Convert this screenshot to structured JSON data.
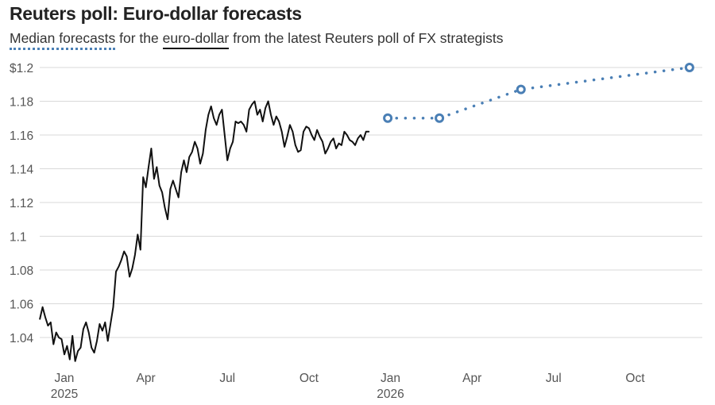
{
  "title": "Reuters poll: Euro-dollar forecasts",
  "subtitle": {
    "part1": "Median forecasts",
    "part2": " for the ",
    "part3": "euro-dollar",
    "part4": " from the latest Reuters poll of FX strategists"
  },
  "colors": {
    "actual": "#111111",
    "forecast": "#4a7fb5",
    "grid": "#d9d9d9",
    "text": "#555555"
  },
  "chart_data": {
    "type": "line",
    "title": "Reuters poll: Euro-dollar forecasts",
    "xlabel": "",
    "ylabel": "",
    "ylim": [
      1.02,
      1.2
    ],
    "yticks": [
      {
        "value": 1.2,
        "label": "$1.2"
      },
      {
        "value": 1.18,
        "label": "1.18"
      },
      {
        "value": 1.16,
        "label": "1.16"
      },
      {
        "value": 1.14,
        "label": "1.14"
      },
      {
        "value": 1.12,
        "label": "1.12"
      },
      {
        "value": 1.1,
        "label": "1.1"
      },
      {
        "value": 1.08,
        "label": "1.08"
      },
      {
        "value": 1.06,
        "label": "1.06"
      },
      {
        "value": 1.04,
        "label": "1.04"
      }
    ],
    "xrange_months": [
      -0.7,
      23.5
    ],
    "xticks": [
      {
        "month": 0,
        "label": "Jan",
        "year": "2025"
      },
      {
        "month": 3,
        "label": "Apr"
      },
      {
        "month": 6,
        "label": "Jul"
      },
      {
        "month": 9,
        "label": "Oct"
      },
      {
        "month": 12,
        "label": "Jan",
        "year": "2026"
      },
      {
        "month": 15,
        "label": "Apr"
      },
      {
        "month": 18,
        "label": "Jul"
      },
      {
        "month": 21,
        "label": "Oct"
      }
    ],
    "series": [
      {
        "name": "euro-dollar",
        "style": "solid",
        "x_month": [
          -0.9,
          -0.8,
          -0.7,
          -0.6,
          -0.5,
          -0.4,
          -0.3,
          -0.2,
          -0.1,
          0.0,
          0.1,
          0.2,
          0.3,
          0.4,
          0.5,
          0.6,
          0.7,
          0.8,
          0.9,
          1.0,
          1.1,
          1.2,
          1.3,
          1.4,
          1.5,
          1.6,
          1.7,
          1.8,
          1.9,
          2.0,
          2.1,
          2.2,
          2.3,
          2.4,
          2.5,
          2.6,
          2.7,
          2.8,
          2.9,
          3.0,
          3.1,
          3.2,
          3.3,
          3.4,
          3.5,
          3.6,
          3.7,
          3.8,
          3.9,
          4.0,
          4.1,
          4.2,
          4.3,
          4.4,
          4.5,
          4.6,
          4.7,
          4.8,
          4.9,
          5.0,
          5.1,
          5.2,
          5.3,
          5.4,
          5.5,
          5.6,
          5.7,
          5.8,
          5.9,
          6.0,
          6.1,
          6.2,
          6.3,
          6.4,
          6.5,
          6.6,
          6.7,
          6.8,
          6.9,
          7.0,
          7.1,
          7.2,
          7.3,
          7.4,
          7.5,
          7.6,
          7.7,
          7.8,
          7.9,
          8.0,
          8.1,
          8.2,
          8.3,
          8.4,
          8.5,
          8.6,
          8.7,
          8.8,
          8.9,
          9.0,
          9.1,
          9.2,
          9.3,
          9.4,
          9.5,
          9.6,
          9.7,
          9.8,
          9.9,
          10.0,
          10.1,
          10.2,
          10.3,
          10.4,
          10.5,
          10.6,
          10.7,
          10.8,
          10.9,
          11.0,
          11.1,
          11.2
        ],
        "values": [
          1.051,
          1.058,
          1.052,
          1.047,
          1.049,
          1.036,
          1.043,
          1.04,
          1.039,
          1.03,
          1.035,
          1.027,
          1.041,
          1.026,
          1.032,
          1.034,
          1.045,
          1.049,
          1.043,
          1.034,
          1.031,
          1.038,
          1.048,
          1.044,
          1.049,
          1.038,
          1.048,
          1.058,
          1.079,
          1.082,
          1.086,
          1.091,
          1.088,
          1.076,
          1.081,
          1.089,
          1.101,
          1.092,
          1.135,
          1.129,
          1.141,
          1.152,
          1.134,
          1.141,
          1.13,
          1.126,
          1.117,
          1.11,
          1.128,
          1.133,
          1.128,
          1.123,
          1.138,
          1.145,
          1.138,
          1.147,
          1.15,
          1.156,
          1.152,
          1.143,
          1.149,
          1.163,
          1.172,
          1.177,
          1.17,
          1.166,
          1.172,
          1.175,
          1.16,
          1.145,
          1.152,
          1.156,
          1.168,
          1.167,
          1.168,
          1.166,
          1.162,
          1.175,
          1.178,
          1.18,
          1.172,
          1.175,
          1.168,
          1.176,
          1.18,
          1.172,
          1.166,
          1.171,
          1.168,
          1.162,
          1.153,
          1.159,
          1.166,
          1.162,
          1.154,
          1.15,
          1.151,
          1.162,
          1.165,
          1.164,
          1.16,
          1.157,
          1.163,
          1.159,
          1.156,
          1.149,
          1.152,
          1.156,
          1.158,
          1.152,
          1.155,
          1.154,
          1.162,
          1.16,
          1.157,
          1.156,
          1.154,
          1.158,
          1.16,
          1.157,
          1.162,
          1.162
        ]
      },
      {
        "name": "median forecasts",
        "style": "dotted",
        "markers": true,
        "x_month": [
          11.9,
          13.8,
          16.8,
          23.0
        ],
        "values": [
          1.17,
          1.17,
          1.187,
          1.2
        ]
      }
    ]
  }
}
